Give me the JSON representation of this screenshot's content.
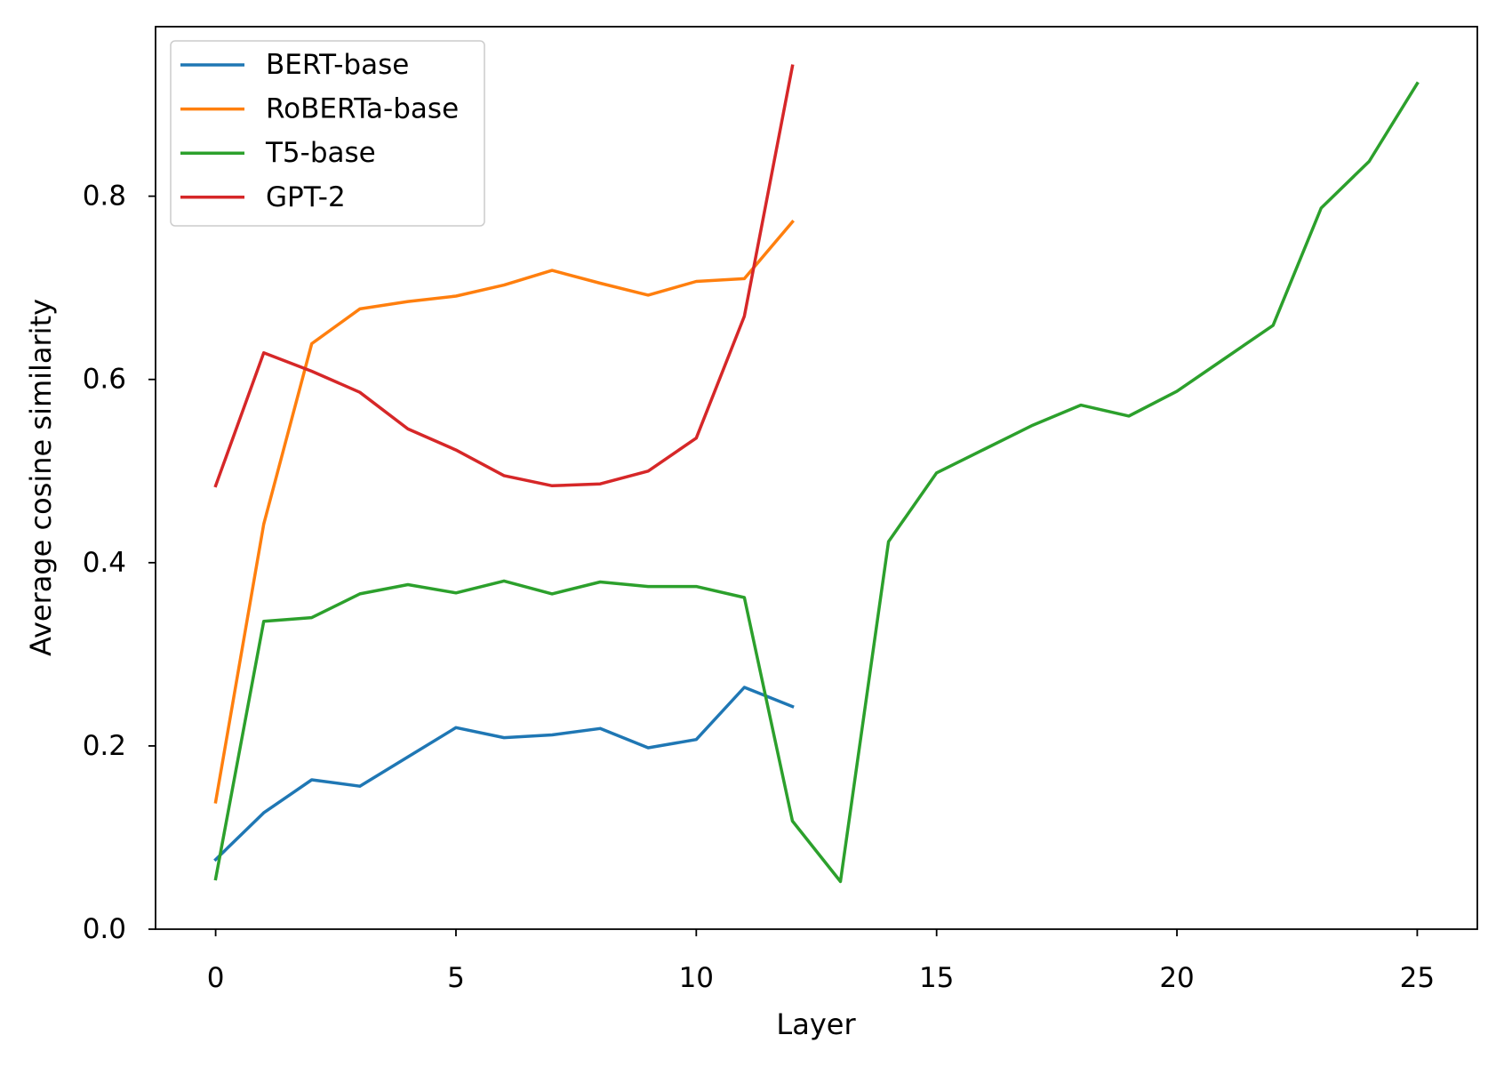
{
  "chart_data": {
    "type": "line",
    "xlabel": "Layer",
    "ylabel": "Average cosine similarity",
    "xlim": [
      -1.25,
      26.25
    ],
    "ylim": [
      0,
      0.985
    ],
    "x_ticks": [
      0,
      5,
      10,
      15,
      20,
      25
    ],
    "x_tick_labels": [
      "0",
      "5",
      "10",
      "15",
      "20",
      "25"
    ],
    "y_ticks": [
      0,
      0.2,
      0.4,
      0.6,
      0.8
    ],
    "y_tick_labels": [
      "0.0",
      "0.2",
      "0.4",
      "0.6",
      "0.8"
    ],
    "grid": false,
    "legend_position": "top-left",
    "series": [
      {
        "name": "BERT-base",
        "color": "#1f77b4",
        "x": [
          0,
          1,
          2,
          3,
          4,
          5,
          6,
          7,
          8,
          9,
          10,
          11,
          12
        ],
        "y": [
          0.076,
          0.127,
          0.163,
          0.156,
          0.188,
          0.22,
          0.209,
          0.212,
          0.219,
          0.198,
          0.207,
          0.264,
          0.243
        ]
      },
      {
        "name": "RoBERTa-base",
        "color": "#ff7f0e",
        "x": [
          0,
          1,
          2,
          3,
          4,
          5,
          6,
          7,
          8,
          9,
          10,
          11,
          12
        ],
        "y": [
          0.139,
          0.442,
          0.639,
          0.677,
          0.685,
          0.691,
          0.703,
          0.719,
          0.705,
          0.692,
          0.707,
          0.71,
          0.772
        ]
      },
      {
        "name": "T5-base",
        "color": "#2ca02c",
        "x": [
          0,
          1,
          2,
          3,
          4,
          5,
          6,
          7,
          8,
          9,
          10,
          11,
          12,
          13,
          14,
          15,
          16,
          17,
          18,
          19,
          20,
          21,
          22,
          23,
          24,
          25
        ],
        "y": [
          0.055,
          0.336,
          0.34,
          0.366,
          0.376,
          0.367,
          0.38,
          0.366,
          0.379,
          0.374,
          0.374,
          0.362,
          0.118,
          0.052,
          0.423,
          0.498,
          0.524,
          0.55,
          0.572,
          0.56,
          0.587,
          0.623,
          0.659,
          0.787,
          0.838,
          0.923
        ]
      },
      {
        "name": "GPT-2",
        "color": "#d62728",
        "x": [
          0,
          1,
          2,
          3,
          4,
          5,
          6,
          7,
          8,
          9,
          10,
          11,
          12
        ],
        "y": [
          0.484,
          0.629,
          0.609,
          0.586,
          0.546,
          0.523,
          0.495,
          0.484,
          0.486,
          0.5,
          0.536,
          0.669,
          0.942
        ]
      }
    ]
  }
}
